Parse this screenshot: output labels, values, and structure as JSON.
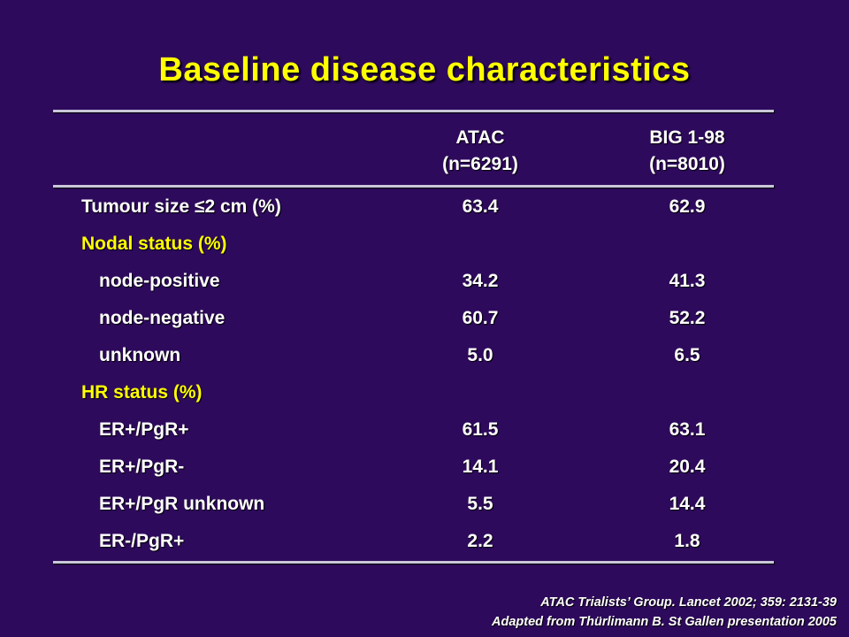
{
  "title": "Baseline disease characteristics",
  "columns": [
    {
      "name": "ATAC",
      "n": "(n=6291)"
    },
    {
      "name": "BIG 1-98",
      "n": "(n=8010)"
    }
  ],
  "rows": [
    {
      "label": "Tumour size ≤2 cm (%)",
      "atac": "63.4",
      "big": "62.9"
    },
    {
      "label": "Nodal status (%)",
      "atac": "",
      "big": ""
    },
    {
      "label": "node-positive",
      "atac": "34.2",
      "big": "41.3"
    },
    {
      "label": "node-negative",
      "atac": "60.7",
      "big": "52.2"
    },
    {
      "label": "unknown",
      "atac": "5.0",
      "big": "6.5"
    },
    {
      "label": "HR status (%)",
      "atac": "",
      "big": ""
    },
    {
      "label": "ER+/PgR+",
      "atac": "61.5",
      "big": "63.1"
    },
    {
      "label": "ER+/PgR-",
      "atac": "14.1",
      "big": "20.4"
    },
    {
      "label": "ER+/PgR unknown",
      "atac": "5.5",
      "big": "14.4"
    },
    {
      "label": "ER-/PgR+",
      "atac": "2.2",
      "big": "1.8"
    }
  ],
  "citation": {
    "line1": "ATAC Trialists’ Group. Lancet 2002; 359: 2131-39",
    "line2": "Adapted from Thürlimann B. St Gallen presentation 2005"
  },
  "colors": {
    "background": "#2e0a5c",
    "title": "#ffff00",
    "group_label": "#ffff00",
    "text": "#ffffff",
    "rule": "#c8c8d8"
  }
}
